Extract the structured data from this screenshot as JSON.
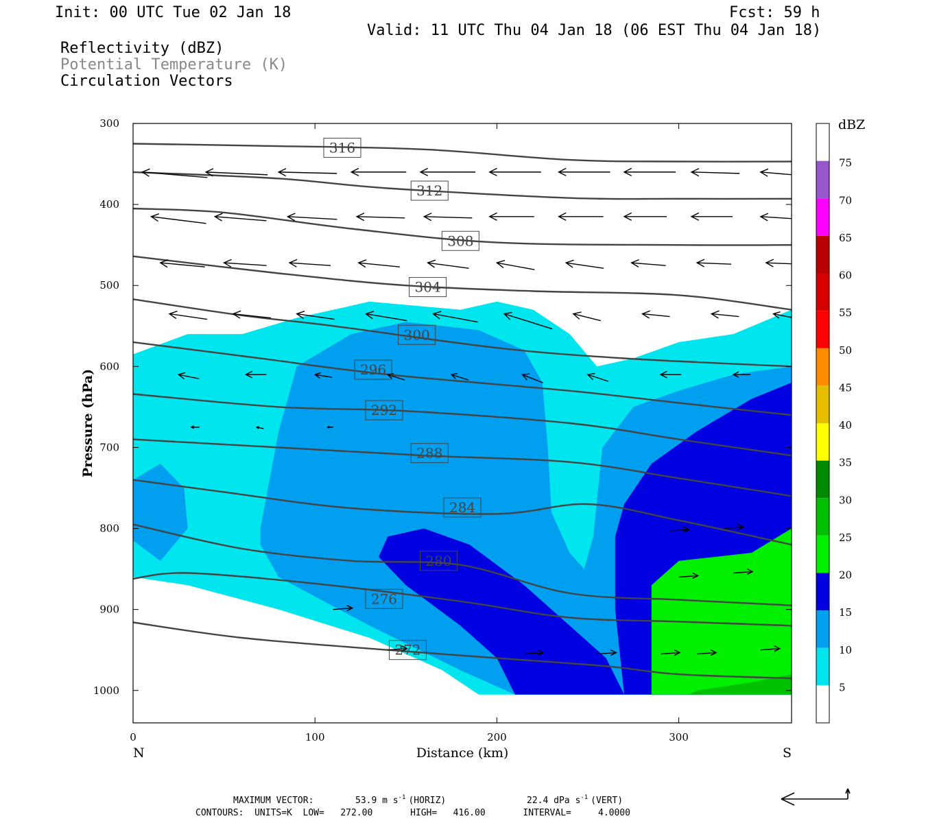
{
  "header": {
    "init": "Init: 00 UTC Tue 02 Jan 18",
    "fcst": "Fcst:   59 h",
    "valid": "Valid: 11 UTC Thu 04 Jan 18 (06 EST Thu 04 Jan 18)",
    "field_reflectivity": "Reflectivity (dBZ)",
    "field_theta": "Potential Temperature (K)",
    "field_vectors": "Circulation Vectors"
  },
  "footer": {
    "max_vector_label": "MAXIMUM VECTOR:",
    "max_horiz": "53.9 m s",
    "max_horiz_exp": "-1",
    "max_horiz_suffix": "(HORIZ)",
    "max_vert": "22.4 dPa s",
    "max_vert_exp": "-1",
    "max_vert_suffix": "(VERT)",
    "contours": "CONTOURS:  UNITS=K  LOW=   272.00       HIGH=   416.00       INTERVAL=     4.0000"
  },
  "colors": {
    "c5": "#00e5ee",
    "c10": "#009ff0",
    "c15": "#0000e0",
    "c20": "#00f000",
    "c25": "#00c000",
    "c30": "#008a00",
    "c35": "#ffff00",
    "c40": "#e6be00",
    "c45": "#ff8c00",
    "c50": "#ff0000",
    "c55": "#d80000",
    "c60": "#b80000",
    "c65": "#ff00ff",
    "c70": "#9955cc",
    "contour": "#444444"
  },
  "chart_data": {
    "type": "cross-section",
    "xlabel": "Distance (km)",
    "ylabel": "Pressure (hPa)",
    "xlim": [
      0,
      362
    ],
    "ylim": [
      1040,
      300
    ],
    "x_ticks": [
      0,
      100,
      200,
      300
    ],
    "y_ticks": [
      300,
      400,
      500,
      600,
      700,
      800,
      900,
      1000
    ],
    "left_end_label": "N",
    "right_end_label": "S",
    "colorbar": {
      "unit": "dBZ",
      "levels": [
        5,
        10,
        15,
        20,
        25,
        30,
        35,
        40,
        45,
        50,
        55,
        60,
        65,
        70,
        75
      ],
      "colors": [
        "#ffffff",
        "#00e5ee",
        "#009ff0",
        "#0000e0",
        "#00f000",
        "#00c000",
        "#008a00",
        "#ffff00",
        "#e6be00",
        "#ff8c00",
        "#ff0000",
        "#d80000",
        "#b80000",
        "#ff00ff",
        "#9955cc",
        "#ffffff"
      ]
    },
    "theta_contours": [
      {
        "value": 316,
        "label_at": [
          115,
          330
        ],
        "points": [
          [
            0,
            325
          ],
          [
            80,
            328
          ],
          [
            160,
            332
          ],
          [
            240,
            345
          ],
          [
            300,
            347
          ],
          [
            362,
            347
          ]
        ]
      },
      {
        "value": 312,
        "label_at": [
          163,
          383
        ],
        "points": [
          [
            0,
            360
          ],
          [
            80,
            368
          ],
          [
            140,
            380
          ],
          [
            240,
            392
          ],
          [
            300,
            393
          ],
          [
            362,
            393
          ]
        ]
      },
      {
        "value": 308,
        "label_at": [
          180,
          445
        ],
        "points": [
          [
            0,
            405
          ],
          [
            50,
            410
          ],
          [
            120,
            430
          ],
          [
            200,
            447
          ],
          [
            300,
            450
          ],
          [
            362,
            450
          ]
        ]
      },
      {
        "value": 304,
        "label_at": [
          162,
          502
        ],
        "points": [
          [
            0,
            464
          ],
          [
            80,
            485
          ],
          [
            150,
            500
          ],
          [
            220,
            507
          ],
          [
            300,
            512
          ],
          [
            362,
            530
          ]
        ]
      },
      {
        "value": 300,
        "label_at": [
          156,
          561
        ],
        "points": [
          [
            0,
            517
          ],
          [
            60,
            537
          ],
          [
            110,
            550
          ],
          [
            200,
            577
          ],
          [
            270,
            590
          ],
          [
            362,
            600
          ]
        ]
      },
      {
        "value": 296,
        "label_at": [
          132,
          604
        ],
        "points": [
          [
            0,
            570
          ],
          [
            70,
            590
          ],
          [
            140,
            610
          ],
          [
            240,
            630
          ],
          [
            300,
            645
          ],
          [
            362,
            660
          ]
        ]
      },
      {
        "value": 292,
        "label_at": [
          138,
          654
        ],
        "points": [
          [
            0,
            634
          ],
          [
            80,
            650
          ],
          [
            150,
            655
          ],
          [
            240,
            670
          ],
          [
            300,
            690
          ],
          [
            362,
            710
          ]
        ]
      },
      {
        "value": 288,
        "label_at": [
          163,
          707
        ],
        "points": [
          [
            0,
            690
          ],
          [
            80,
            700
          ],
          [
            160,
            710
          ],
          [
            240,
            718
          ],
          [
            300,
            738
          ],
          [
            362,
            760
          ]
        ]
      },
      {
        "value": 284,
        "label_at": [
          181,
          774
        ],
        "points": [
          [
            0,
            740
          ],
          [
            50,
            755
          ],
          [
            120,
            775
          ],
          [
            200,
            782
          ],
          [
            250,
            770
          ],
          [
            300,
            790
          ],
          [
            362,
            820
          ]
        ]
      },
      {
        "value": 280,
        "label_at": [
          168,
          840
        ],
        "points": [
          [
            0,
            795
          ],
          [
            60,
            825
          ],
          [
            120,
            840
          ],
          [
            180,
            845
          ],
          [
            240,
            880
          ],
          [
            300,
            888
          ],
          [
            362,
            895
          ]
        ]
      },
      {
        "value": 276,
        "label_at": [
          138,
          887
        ],
        "points": [
          [
            0,
            862
          ],
          [
            30,
            855
          ],
          [
            100,
            868
          ],
          [
            180,
            890
          ],
          [
            240,
            910
          ],
          [
            300,
            915
          ],
          [
            362,
            920
          ]
        ]
      },
      {
        "value": 272,
        "label_at": [
          151,
          950
        ],
        "points": [
          [
            0,
            916
          ],
          [
            60,
            935
          ],
          [
            140,
            950
          ],
          [
            200,
            960
          ],
          [
            260,
            970
          ],
          [
            300,
            980
          ],
          [
            362,
            985
          ]
        ]
      }
    ],
    "reflectivity_areas": [
      {
        "level": 5,
        "points": [
          [
            0,
            585
          ],
          [
            30,
            560
          ],
          [
            60,
            560
          ],
          [
            90,
            540
          ],
          [
            130,
            520
          ],
          [
            180,
            530
          ],
          [
            200,
            520
          ],
          [
            220,
            530
          ],
          [
            240,
            560
          ],
          [
            255,
            600
          ],
          [
            275,
            590
          ],
          [
            300,
            570
          ],
          [
            330,
            560
          ],
          [
            362,
            530
          ],
          [
            362,
            1005
          ],
          [
            190,
            1005
          ],
          [
            170,
            975
          ],
          [
            130,
            935
          ],
          [
            80,
            900
          ],
          [
            30,
            870
          ],
          [
            0,
            860
          ]
        ]
      },
      {
        "level": 10,
        "points": [
          [
            70,
            800
          ],
          [
            80,
            680
          ],
          [
            90,
            600
          ],
          [
            120,
            560
          ],
          [
            150,
            545
          ],
          [
            190,
            555
          ],
          [
            215,
            580
          ],
          [
            225,
            620
          ],
          [
            228,
            700
          ],
          [
            230,
            780
          ],
          [
            240,
            830
          ],
          [
            248,
            850
          ],
          [
            253,
            810
          ],
          [
            258,
            700
          ],
          [
            275,
            650
          ],
          [
            300,
            630
          ],
          [
            330,
            610
          ],
          [
            362,
            600
          ],
          [
            362,
            1005
          ],
          [
            210,
            1005
          ],
          [
            180,
            975
          ],
          [
            130,
            920
          ],
          [
            80,
            860
          ],
          [
            70,
            820
          ]
        ]
      },
      {
        "level": 10,
        "points": [
          [
            0,
            740
          ],
          [
            15,
            720
          ],
          [
            28,
            750
          ],
          [
            30,
            800
          ],
          [
            15,
            840
          ],
          [
            0,
            815
          ]
        ]
      },
      {
        "level": 15,
        "points": [
          [
            140,
            810
          ],
          [
            160,
            800
          ],
          [
            185,
            820
          ],
          [
            215,
            870
          ],
          [
            240,
            920
          ],
          [
            260,
            960
          ],
          [
            270,
            1005
          ],
          [
            210,
            1005
          ],
          [
            200,
            960
          ],
          [
            180,
            920
          ],
          [
            150,
            870
          ],
          [
            135,
            835
          ]
        ]
      },
      {
        "level": 15,
        "points": [
          [
            270,
            770
          ],
          [
            285,
            720
          ],
          [
            310,
            680
          ],
          [
            340,
            640
          ],
          [
            362,
            620
          ],
          [
            362,
            1005
          ],
          [
            270,
            1005
          ],
          [
            265,
            900
          ],
          [
            265,
            810
          ]
        ]
      },
      {
        "level": 20,
        "points": [
          [
            285,
            870
          ],
          [
            300,
            840
          ],
          [
            340,
            830
          ],
          [
            362,
            800
          ],
          [
            362,
            1005
          ],
          [
            285,
            1005
          ]
        ]
      },
      {
        "level": 25,
        "points": [
          [
            310,
            1000
          ],
          [
            340,
            990
          ],
          [
            362,
            980
          ],
          [
            362,
            1005
          ],
          [
            305,
            1005
          ]
        ]
      }
    ],
    "max_vector": {
      "horizontal_m_s": 53.9,
      "vertical_dPa_s": 22.4
    }
  }
}
